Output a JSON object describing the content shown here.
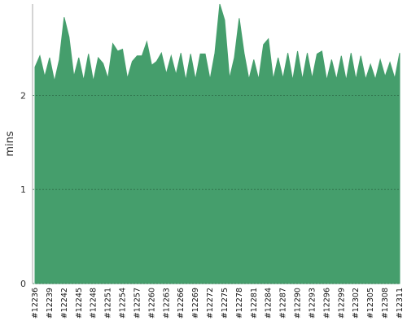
{
  "chart_data": {
    "type": "area",
    "ylabel": "mins",
    "categories": [
      "#12236",
      null,
      null,
      "#12239",
      null,
      null,
      "#12242",
      null,
      null,
      "#12245",
      null,
      null,
      "#12248",
      null,
      null,
      "#12251",
      null,
      null,
      "#12254",
      null,
      null,
      "#12257",
      null,
      null,
      "#12260",
      null,
      null,
      "#12263",
      null,
      null,
      "#12266",
      null,
      null,
      "#12269",
      null,
      null,
      "#12272",
      null,
      null,
      "#12275",
      null,
      null,
      "#12278",
      null,
      null,
      "#12281",
      null,
      null,
      "#12284",
      null,
      null,
      "#12287",
      null,
      null,
      "#12290",
      null,
      null,
      "#12293",
      null,
      null,
      "#12296",
      null,
      null,
      "#12299",
      null,
      null,
      "#12302",
      null,
      null,
      "#12305",
      null,
      null,
      "#12308",
      null,
      null,
      "#12311"
    ],
    "values": [
      2.3,
      2.42,
      2.2,
      2.4,
      2.15,
      2.38,
      2.83,
      2.62,
      2.2,
      2.4,
      2.16,
      2.44,
      2.15,
      2.4,
      2.34,
      2.18,
      2.55,
      2.47,
      2.49,
      2.18,
      2.36,
      2.42,
      2.42,
      2.57,
      2.32,
      2.36,
      2.45,
      2.23,
      2.42,
      2.22,
      2.45,
      2.16,
      2.44,
      2.17,
      2.44,
      2.44,
      2.17,
      2.45,
      2.97,
      2.8,
      2.18,
      2.4,
      2.82,
      2.45,
      2.17,
      2.38,
      2.17,
      2.54,
      2.6,
      2.17,
      2.4,
      2.18,
      2.45,
      2.16,
      2.47,
      2.17,
      2.45,
      2.18,
      2.44,
      2.47,
      2.16,
      2.38,
      2.17,
      2.42,
      2.16,
      2.45,
      2.17,
      2.42,
      2.17,
      2.33,
      2.17,
      2.38,
      2.2,
      2.35,
      2.18,
      2.45
    ],
    "color": "#459e6c",
    "ylim": [
      0,
      2.97
    ],
    "yticks": [
      0,
      1,
      2
    ],
    "grid": true
  }
}
